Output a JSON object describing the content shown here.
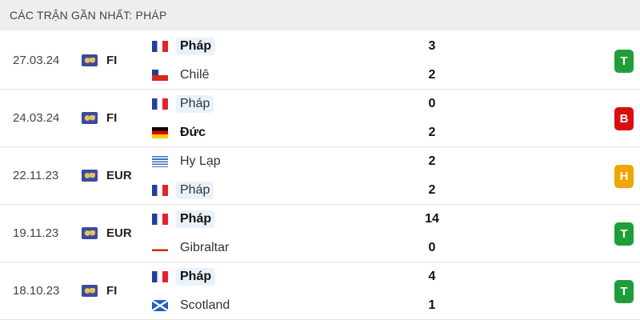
{
  "header": {
    "title": "CÁC TRẬN GẦN NHẤT: PHÁP"
  },
  "result_colors": {
    "T": "#1e9e3a",
    "B": "#d90f0f",
    "H": "#f0a500"
  },
  "matches": [
    {
      "date": "27.03.24",
      "competition": "FI",
      "home": {
        "name": "Pháp",
        "flag": "france",
        "score": "3",
        "bold": true,
        "highlight": true
      },
      "away": {
        "name": "Chilê",
        "flag": "chile",
        "score": "2",
        "bold": false,
        "highlight": false
      },
      "result": "T"
    },
    {
      "date": "24.03.24",
      "competition": "FI",
      "home": {
        "name": "Pháp",
        "flag": "france",
        "score": "0",
        "bold": false,
        "highlight": true
      },
      "away": {
        "name": "Đức",
        "flag": "germany",
        "score": "2",
        "bold": true,
        "highlight": false
      },
      "result": "B"
    },
    {
      "date": "22.11.23",
      "competition": "EUR",
      "home": {
        "name": "Hy Lạp",
        "flag": "greece",
        "score": "2",
        "bold": false,
        "highlight": false
      },
      "away": {
        "name": "Pháp",
        "flag": "france",
        "score": "2",
        "bold": false,
        "highlight": true
      },
      "result": "H"
    },
    {
      "date": "19.11.23",
      "competition": "EUR",
      "home": {
        "name": "Pháp",
        "flag": "france",
        "score": "14",
        "bold": true,
        "highlight": true
      },
      "away": {
        "name": "Gibraltar",
        "flag": "gibraltar",
        "score": "0",
        "bold": false,
        "highlight": false
      },
      "result": "T"
    },
    {
      "date": "18.10.23",
      "competition": "FI",
      "home": {
        "name": "Pháp",
        "flag": "france",
        "score": "4",
        "bold": true,
        "highlight": true
      },
      "away": {
        "name": "Scotland",
        "flag": "scotland",
        "score": "1",
        "bold": false,
        "highlight": false
      },
      "result": "T"
    }
  ]
}
